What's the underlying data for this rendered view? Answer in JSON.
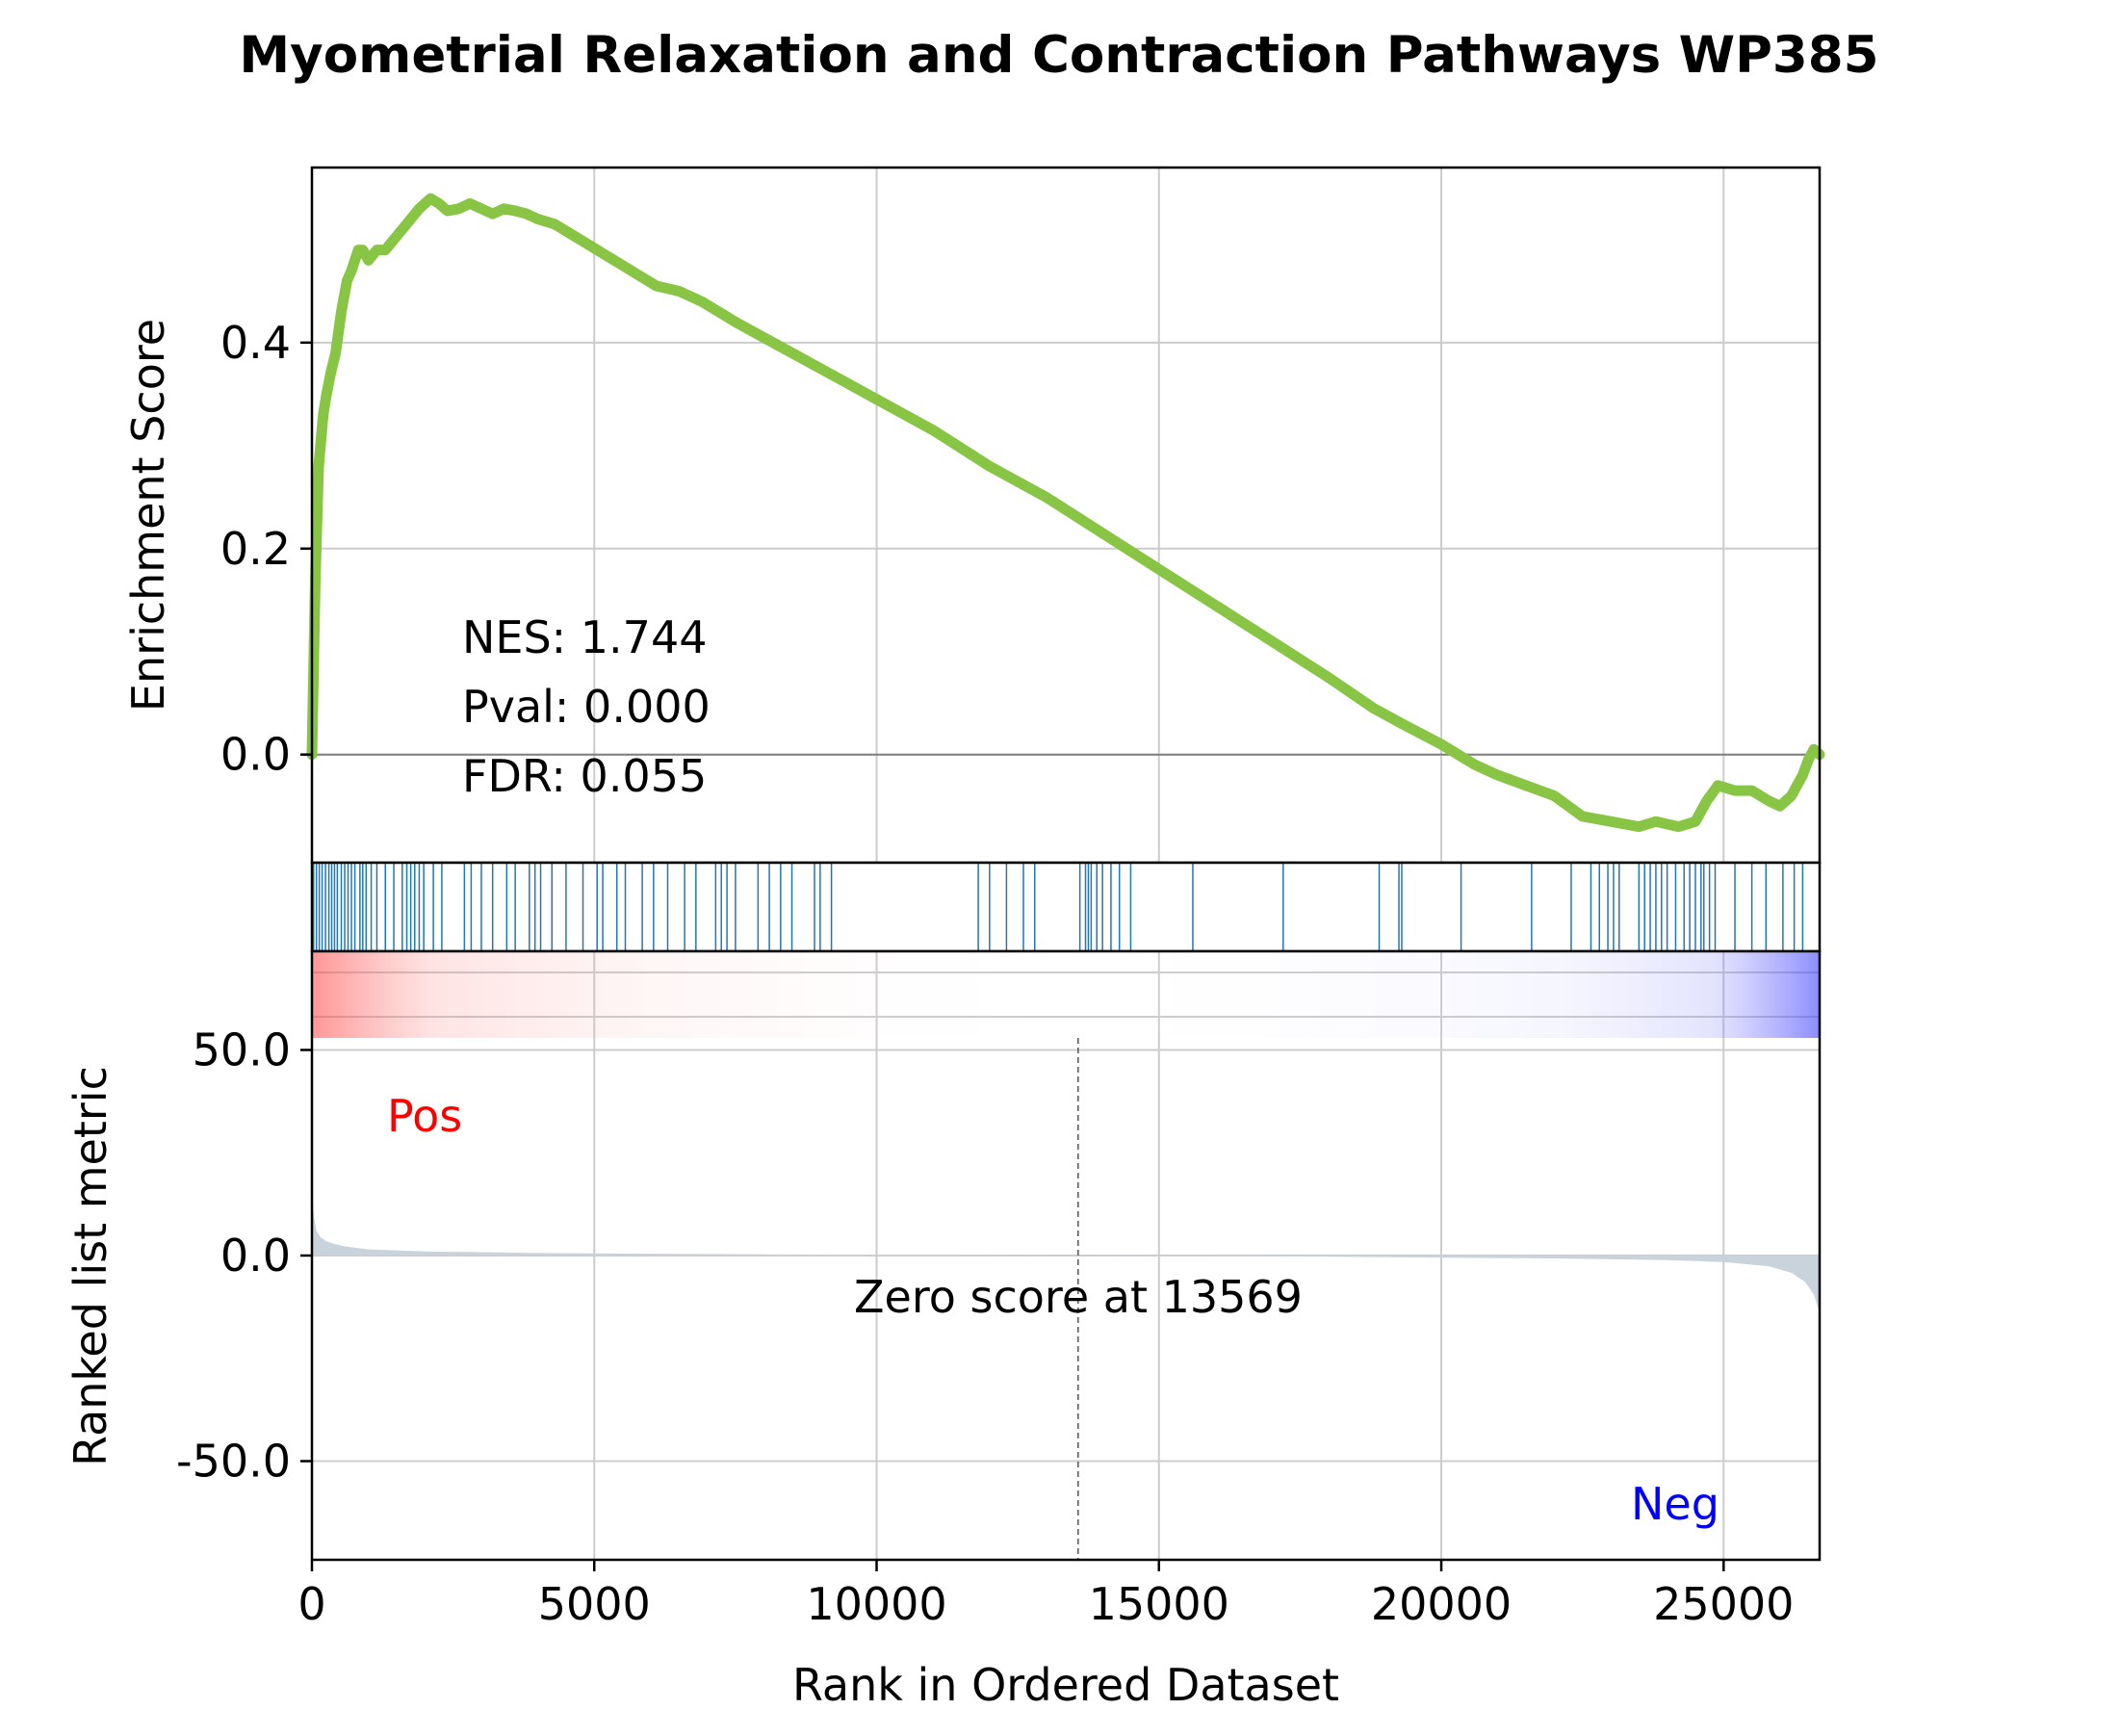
{
  "title": "Myometrial Relaxation and Contraction Pathways WP385",
  "colors": {
    "es_line": "#88c544",
    "hits": "#1f77b4",
    "metric_fill": "#c9d3dc",
    "pos_label": "#ff0000",
    "neg_label": "#0000ff",
    "grid": "#cccccc",
    "zero_line": "#808080"
  },
  "stats": {
    "nes": "NES: 1.744",
    "pval": "Pval: 0.000",
    "fdr": "FDR: 0.055"
  },
  "labels": {
    "pos": "Pos",
    "neg": "Neg",
    "zero_score": "Zero score at 13569"
  },
  "chart_data": {
    "type": "line",
    "title": "Myometrial Relaxation and Contraction Pathways WP385",
    "xlabel": "Rank in Ordered Dataset",
    "xlim": [
      0,
      26700
    ],
    "xticks": [
      0,
      5000,
      10000,
      15000,
      20000,
      25000
    ],
    "es_panel": {
      "ylabel": "Enrichment Score",
      "ylim": [
        -0.105,
        0.57
      ],
      "yticks": [
        0.0,
        0.2,
        0.4
      ],
      "ytick_labels": [
        "0.0",
        "0.2",
        "0.4"
      ],
      "series": [
        {
          "x": [
            0,
            60,
            120,
            200,
            260,
            330,
            420,
            520,
            620,
            700,
            820,
            900,
            1000,
            1150,
            1300,
            1450,
            1600,
            1750,
            1900,
            2100,
            2250,
            2400,
            2600,
            2800,
            3000,
            3200,
            3400,
            3600,
            3800,
            4000,
            4300,
            4600,
            4900,
            5200,
            5500,
            5800,
            6100,
            6500,
            6900,
            7200,
            7500,
            8000,
            8500,
            9000,
            9500,
            10000,
            11000,
            12000,
            13000,
            14000,
            15000,
            16000,
            17000,
            18000,
            18800,
            19300,
            20000,
            20600,
            21000,
            21500,
            22000,
            22500,
            23000,
            23500,
            23800,
            24200,
            24500,
            24700,
            24900,
            25200,
            25500,
            25800,
            26000,
            26200,
            26300,
            26400,
            26500,
            26600,
            26700
          ],
          "y": [
            0.0,
            0.17,
            0.28,
            0.33,
            0.35,
            0.37,
            0.39,
            0.43,
            0.46,
            0.47,
            0.49,
            0.49,
            0.48,
            0.49,
            0.49,
            0.5,
            0.51,
            0.52,
            0.53,
            0.54,
            0.535,
            0.528,
            0.53,
            0.535,
            0.53,
            0.525,
            0.53,
            0.528,
            0.525,
            0.52,
            0.515,
            0.505,
            0.495,
            0.485,
            0.475,
            0.465,
            0.455,
            0.45,
            0.44,
            0.43,
            0.42,
            0.405,
            0.39,
            0.375,
            0.36,
            0.345,
            0.315,
            0.28,
            0.25,
            0.215,
            0.18,
            0.145,
            0.11,
            0.075,
            0.045,
            0.03,
            0.01,
            -0.01,
            -0.02,
            -0.03,
            -0.04,
            -0.06,
            -0.065,
            -0.07,
            -0.065,
            -0.07,
            -0.065,
            -0.045,
            -0.03,
            -0.035,
            -0.035,
            -0.045,
            -0.05,
            -0.04,
            -0.03,
            -0.02,
            -0.005,
            0.005,
            0.0
          ]
        }
      ]
    },
    "hits": [
      30,
      80,
      130,
      180,
      240,
      300,
      350,
      400,
      450,
      520,
      580,
      640,
      700,
      760,
      850,
      900,
      960,
      1050,
      1150,
      1300,
      1450,
      1600,
      1680,
      1750,
      1820,
      1900,
      1980,
      2150,
      2300,
      2700,
      2820,
      3000,
      3200,
      3450,
      3600,
      3850,
      3950,
      4050,
      4250,
      4500,
      4800,
      5050,
      5150,
      5400,
      5550,
      5850,
      6050,
      6300,
      6600,
      6800,
      7150,
      7250,
      7350,
      7500,
      7900,
      8100,
      8300,
      8500,
      8900,
      9000,
      9200,
      11800,
      12000,
      12300,
      12600,
      12800,
      13600,
      13700,
      13750,
      13800,
      13900,
      14000,
      14150,
      14300,
      14500,
      15600,
      17200,
      18900,
      19250,
      19300,
      20350,
      21600,
      22300,
      22650,
      22800,
      22950,
      23050,
      23150,
      23500,
      23600,
      23700,
      23800,
      23900,
      24000,
      24150,
      24300,
      24400,
      24500,
      24600,
      24650,
      24750,
      24850,
      25200,
      25500,
      25750,
      26050,
      26250,
      26400
    ],
    "metric_panel": {
      "ylabel": "Ranked list metric",
      "ylim": [
        -74,
        74
      ],
      "yticks": [
        50,
        0,
        -50
      ],
      "ytick_labels": [
        "50.0",
        "0.0",
        "-50.0"
      ],
      "x": [
        0,
        30,
        80,
        150,
        250,
        400,
        600,
        1000,
        2000,
        4000,
        8000,
        13569,
        18000,
        22000,
        24000,
        25000,
        25800,
        26200,
        26450,
        26600,
        26700
      ],
      "y": [
        18,
        10,
        6,
        4.5,
        3.5,
        2.8,
        2.2,
        1.5,
        1.0,
        0.6,
        0.3,
        0.0,
        -0.3,
        -0.7,
        -1.1,
        -1.6,
        -2.6,
        -4.2,
        -6.5,
        -9.5,
        -14
      ]
    },
    "zero_score_rank": 13569,
    "grid": true
  }
}
